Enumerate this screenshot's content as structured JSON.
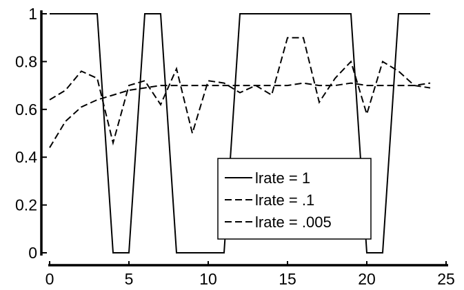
{
  "chart_data": {
    "type": "line",
    "title": "",
    "xlabel": "",
    "ylabel": "",
    "xlim": [
      0,
      25
    ],
    "ylim": [
      0,
      1
    ],
    "x_ticks": [
      "0",
      "5",
      "10",
      "15",
      "20",
      "25"
    ],
    "y_ticks": [
      "0",
      "0.2",
      "0.4",
      "0.6",
      "0.8",
      "1"
    ],
    "grid": false,
    "legend_position": "center-right",
    "x": [
      0,
      1,
      2,
      3,
      4,
      5,
      6,
      7,
      8,
      9,
      10,
      11,
      12,
      13,
      14,
      15,
      16,
      17,
      18,
      19,
      20,
      21,
      22,
      23,
      24
    ],
    "series": [
      {
        "name": "lrate = 1",
        "style": "solid",
        "values": [
          1,
          1,
          1,
          1,
          0,
          0,
          1,
          1,
          0,
          0,
          0,
          0,
          1,
          1,
          1,
          1,
          1,
          1,
          1,
          1,
          0,
          0,
          1,
          1,
          1
        ]
      },
      {
        "name": "lrate = .1",
        "style": "dashed",
        "values": [
          0.64,
          0.68,
          0.76,
          0.73,
          0.46,
          0.7,
          0.72,
          0.62,
          0.77,
          0.5,
          0.72,
          0.71,
          0.67,
          0.7,
          0.66,
          0.9,
          0.9,
          0.63,
          0.73,
          0.8,
          0.58,
          0.8,
          0.76,
          0.7,
          0.69
        ]
      },
      {
        "name": "lrate = .005",
        "style": "dashed",
        "values": [
          0.44,
          0.55,
          0.61,
          0.64,
          0.66,
          0.68,
          0.69,
          0.7,
          0.7,
          0.7,
          0.7,
          0.7,
          0.7,
          0.7,
          0.7,
          0.7,
          0.71,
          0.7,
          0.7,
          0.71,
          0.7,
          0.7,
          0.7,
          0.7,
          0.71
        ]
      }
    ]
  }
}
